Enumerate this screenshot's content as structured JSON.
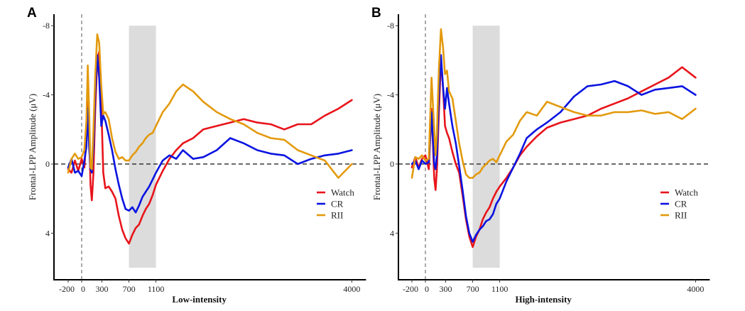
{
  "chart_data": [
    {
      "type": "line",
      "panel_label": "A",
      "title": "",
      "xlabel": "Low-intensity",
      "ylabel": "Frontal-LPP Amplitude (μV)",
      "x_ticks": [
        -200,
        0,
        300,
        700,
        1100,
        4000
      ],
      "y_ticks": [
        -8,
        -4,
        0,
        4
      ],
      "xlim": [
        -200,
        4000
      ],
      "ylim": [
        -8.7,
        6.6
      ],
      "y_inverted": true,
      "x_unit": "ms",
      "shaded_window": [
        700,
        1100
      ],
      "reference_lines": {
        "x": 0,
        "y": 0
      },
      "legend": {
        "position": "bottom-right",
        "entries": [
          "Watch",
          "CR",
          "RII"
        ]
      },
      "series": [
        {
          "name": "Watch",
          "color": "#e8141b",
          "x": [
            -200,
            -150,
            -100,
            -50,
            0,
            40,
            70,
            90,
            110,
            130,
            150,
            175,
            200,
            230,
            260,
            290,
            320,
            350,
            400,
            450,
            500,
            550,
            600,
            650,
            700,
            750,
            800,
            850,
            900,
            950,
            1000,
            1050,
            1100,
            1200,
            1300,
            1400,
            1500,
            1650,
            1800,
            2000,
            2200,
            2400,
            2600,
            2800,
            3000,
            3200,
            3400,
            3600,
            3800,
            4000
          ],
          "y": [
            0.3,
            0.5,
            -0.2,
            0.4,
            -0.3,
            0.2,
            -1.5,
            -3.8,
            -2.0,
            1.2,
            2.1,
            0.5,
            -3.0,
            -6.0,
            -6.5,
            -3.5,
            0.5,
            1.4,
            1.3,
            1.6,
            2.0,
            3.0,
            3.8,
            4.3,
            4.6,
            4.1,
            3.7,
            3.5,
            3.0,
            2.6,
            2.3,
            1.8,
            1.2,
            0.4,
            -0.3,
            -0.8,
            -1.2,
            -1.5,
            -2.0,
            -2.2,
            -2.4,
            -2.6,
            -2.4,
            -2.3,
            -2.0,
            -2.3,
            -2.3,
            -2.8,
            -3.2,
            -3.7
          ]
        },
        {
          "name": "CR",
          "color": "#0a14e0",
          "x": [
            -200,
            -150,
            -100,
            -50,
            0,
            40,
            70,
            90,
            110,
            130,
            150,
            175,
            200,
            230,
            260,
            290,
            320,
            350,
            400,
            450,
            500,
            550,
            600,
            650,
            700,
            750,
            800,
            850,
            900,
            950,
            1000,
            1050,
            1100,
            1200,
            1300,
            1400,
            1500,
            1650,
            1800,
            2000,
            2200,
            2400,
            2600,
            2800,
            3000,
            3200,
            3400,
            3600,
            3800,
            4000
          ],
          "y": [
            0.2,
            -0.3,
            0.5,
            0.4,
            0.7,
            -0.2,
            -1.0,
            -3.2,
            -1.0,
            0.3,
            0.5,
            -1.0,
            -4.0,
            -6.3,
            -5.0,
            -2.2,
            -2.8,
            -2.5,
            -1.7,
            -0.8,
            0.3,
            1.2,
            2.0,
            2.6,
            2.7,
            2.5,
            2.8,
            2.4,
            1.9,
            1.6,
            1.3,
            0.9,
            0.5,
            -0.2,
            -0.5,
            -0.3,
            -0.8,
            -0.3,
            -0.4,
            -0.8,
            -1.5,
            -1.2,
            -0.8,
            -0.6,
            -0.5,
            0.0,
            -0.3,
            -0.5,
            -0.6,
            -0.8
          ]
        },
        {
          "name": "RII",
          "color": "#e39a0e",
          "x": [
            -200,
            -150,
            -100,
            -50,
            0,
            40,
            70,
            90,
            110,
            130,
            150,
            175,
            200,
            230,
            260,
            290,
            320,
            350,
            400,
            450,
            500,
            550,
            600,
            650,
            700,
            750,
            800,
            850,
            900,
            950,
            1000,
            1050,
            1100,
            1200,
            1300,
            1400,
            1500,
            1650,
            1800,
            2000,
            2200,
            2400,
            2600,
            2800,
            3000,
            3200,
            3400,
            3600,
            3800,
            4000
          ],
          "y": [
            0.5,
            -0.3,
            -0.6,
            -0.3,
            -0.4,
            -0.8,
            -2.5,
            -5.7,
            -3.0,
            0.2,
            0.3,
            -2.0,
            -5.0,
            -7.5,
            -7.0,
            -4.5,
            -2.9,
            -3.0,
            -2.6,
            -1.5,
            -0.7,
            -0.3,
            -0.4,
            -0.2,
            -0.2,
            -0.5,
            -0.7,
            -1.0,
            -1.2,
            -1.5,
            -1.7,
            -1.8,
            -2.2,
            -3.0,
            -3.5,
            -4.2,
            -4.6,
            -4.2,
            -3.6,
            -3.0,
            -2.6,
            -2.3,
            -1.8,
            -1.5,
            -1.4,
            -0.8,
            -0.5,
            -0.2,
            0.8,
            0.0
          ]
        }
      ]
    },
    {
      "type": "line",
      "panel_label": "B",
      "title": "",
      "xlabel": "High-intensity",
      "ylabel": "Frontal-LPP Amplitude (μV)",
      "x_ticks": [
        -200,
        0,
        300,
        700,
        1100,
        4000
      ],
      "y_ticks": [
        -8,
        -4,
        0,
        4
      ],
      "xlim": [
        -200,
        4000
      ],
      "ylim": [
        -8.7,
        6.6
      ],
      "y_inverted": true,
      "x_unit": "ms",
      "shaded_window": [
        700,
        1100
      ],
      "reference_lines": {
        "x": 0,
        "y": 0
      },
      "legend": {
        "position": "bottom-right",
        "entries": [
          "Watch",
          "CR",
          "RII"
        ]
      },
      "series": [
        {
          "name": "Watch",
          "color": "#e8141b",
          "x": [
            -200,
            -150,
            -100,
            -50,
            0,
            50,
            90,
            130,
            150,
            170,
            200,
            230,
            260,
            290,
            320,
            350,
            400,
            450,
            500,
            550,
            600,
            650,
            700,
            750,
            800,
            850,
            900,
            950,
            1000,
            1050,
            1100,
            1200,
            1300,
            1400,
            1500,
            1650,
            1800,
            2000,
            2200,
            2400,
            2600,
            2800,
            3000,
            3200,
            3400,
            3600,
            3800,
            4000
          ],
          "y": [
            0.2,
            -0.4,
            0.2,
            -0.3,
            -0.5,
            0.3,
            -3.2,
            0.8,
            1.5,
            0.3,
            -3.0,
            -6.0,
            -4.5,
            -2.2,
            -1.8,
            -1.5,
            -0.7,
            0.0,
            0.5,
            1.8,
            3.2,
            4.2,
            4.8,
            4.2,
            3.8,
            3.2,
            2.8,
            2.5,
            2.0,
            1.6,
            1.3,
            0.8,
            0.2,
            -0.5,
            -1.0,
            -1.6,
            -2.1,
            -2.4,
            -2.6,
            -2.8,
            -3.2,
            -3.5,
            -3.8,
            -4.2,
            -4.6,
            -5.0,
            -5.6,
            -5.0
          ]
        },
        {
          "name": "CR",
          "color": "#0a14e0",
          "x": [
            -200,
            -150,
            -100,
            -50,
            0,
            50,
            90,
            130,
            150,
            170,
            200,
            230,
            260,
            290,
            320,
            350,
            400,
            450,
            500,
            550,
            600,
            650,
            700,
            750,
            800,
            850,
            900,
            950,
            1000,
            1050,
            1100,
            1200,
            1300,
            1400,
            1500,
            1650,
            1800,
            2000,
            2200,
            2400,
            2600,
            2800,
            3000,
            3200,
            3400,
            3600,
            3800,
            4000
          ],
          "y": [
            0.0,
            -0.2,
            0.3,
            -0.2,
            0.0,
            -0.1,
            -3.0,
            0.0,
            0.3,
            -0.5,
            -4.0,
            -6.3,
            -4.5,
            -3.2,
            -4.4,
            -3.5,
            -2.2,
            -1.2,
            0.1,
            1.5,
            3.0,
            4.0,
            4.5,
            4.1,
            3.8,
            3.6,
            3.3,
            3.2,
            2.9,
            2.3,
            2.0,
            1.0,
            0.2,
            -0.6,
            -1.5,
            -2.0,
            -2.4,
            -3.0,
            -3.9,
            -4.5,
            -4.6,
            -4.8,
            -4.5,
            -4.0,
            -4.3,
            -4.4,
            -4.5,
            -4.0
          ]
        },
        {
          "name": "RII",
          "color": "#e39a0e",
          "x": [
            -200,
            -150,
            -100,
            -50,
            0,
            50,
            90,
            130,
            150,
            170,
            200,
            230,
            260,
            290,
            320,
            350,
            400,
            450,
            500,
            550,
            600,
            650,
            700,
            750,
            800,
            850,
            900,
            950,
            1000,
            1050,
            1100,
            1200,
            1300,
            1400,
            1500,
            1650,
            1800,
            2000,
            2200,
            2400,
            2600,
            2800,
            3000,
            3200,
            3400,
            3600,
            3800,
            4000
          ],
          "y": [
            0.8,
            -0.4,
            -0.3,
            -0.5,
            -0.2,
            -0.3,
            -5.0,
            -2.0,
            -0.5,
            -1.8,
            -5.5,
            -7.8,
            -6.8,
            -5.2,
            -5.4,
            -4.2,
            -3.8,
            -2.5,
            -1.2,
            -0.2,
            0.6,
            0.8,
            0.8,
            0.6,
            0.5,
            0.2,
            0.0,
            -0.2,
            -0.3,
            -0.1,
            -0.5,
            -1.3,
            -1.7,
            -2.5,
            -3.0,
            -2.8,
            -3.6,
            -3.3,
            -3.0,
            -2.8,
            -2.8,
            -3.0,
            -3.0,
            -3.1,
            -2.9,
            -3.0,
            -2.6,
            -3.2
          ]
        }
      ]
    }
  ]
}
